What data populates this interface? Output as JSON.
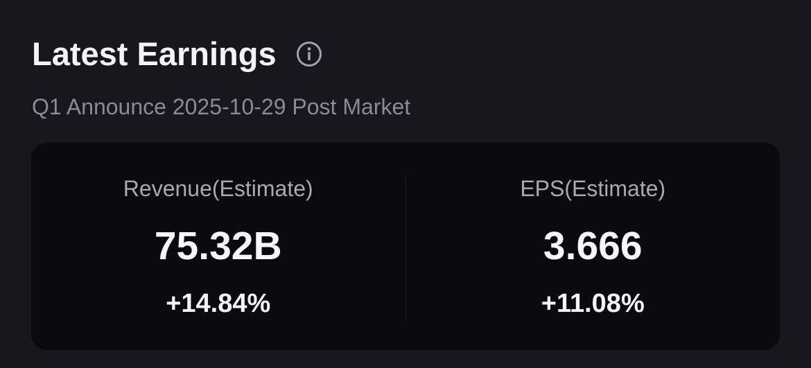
{
  "header": {
    "title": "Latest Earnings",
    "info_icon": "info-icon",
    "subtitle": "Q1 Announce 2025-10-29 Post Market"
  },
  "metrics": [
    {
      "label": "Revenue(Estimate)",
      "value": "75.32B",
      "change": "+14.84%"
    },
    {
      "label": "EPS(Estimate)",
      "value": "3.666",
      "change": "+11.08%"
    }
  ],
  "colors": {
    "background": "#18171d",
    "card": "#0b0b0e",
    "title": "#f4f4f6",
    "subtitle": "#8b8a96",
    "label": "#a9a8b3"
  }
}
